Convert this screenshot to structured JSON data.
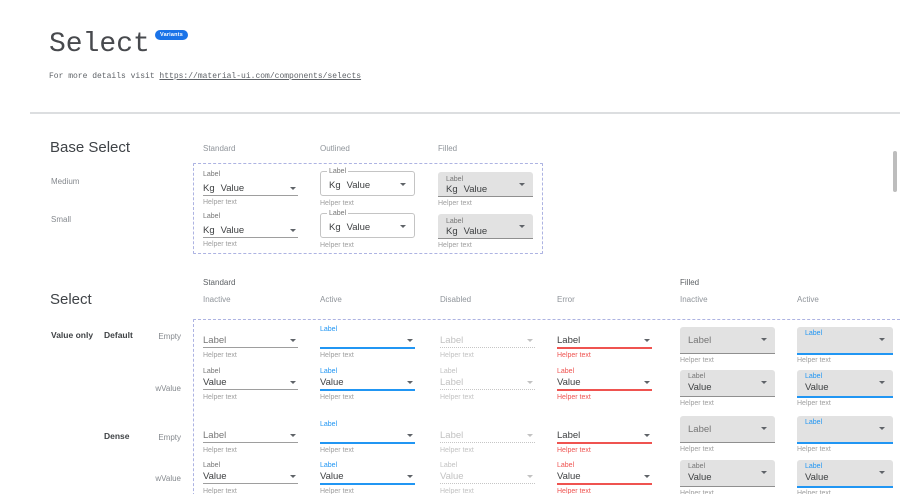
{
  "colors": {
    "accent": "#2196f3",
    "error": "#ef5350",
    "badge": "#1a73e8",
    "filled_bg": "#e2e2e2",
    "dash": "#adb3e2"
  },
  "header": {
    "title": "Select",
    "badge": "Variants",
    "intro_text": "For more details visit ",
    "intro_link": "https://material-ui.com/components/selects"
  },
  "base_select": {
    "heading": "Base Select",
    "column_headers": [
      "Standard",
      "Outlined",
      "Filled"
    ],
    "row_headers": [
      "Medium",
      "Small"
    ],
    "component": {
      "label": "Label",
      "adornment": "Kg",
      "value": "Value",
      "helper": "Helper text"
    }
  },
  "select_matrix": {
    "heading": "Select",
    "group_headers": [
      "Standard",
      "Filled"
    ],
    "state_headers": [
      "Inactive",
      "Active",
      "Disabled",
      "Error",
      "Inactive",
      "Active"
    ],
    "row_label": "Value only",
    "helper": "Helper text",
    "rows": [
      {
        "size": "Default",
        "variant": "Empty",
        "cells": [
          {
            "kind": "standard",
            "state": "inactive",
            "caption": null,
            "value": "Label",
            "tone": "placeholder"
          },
          {
            "kind": "standard",
            "state": "active",
            "caption": "Label",
            "value": null,
            "tone": "dark"
          },
          {
            "kind": "standard",
            "state": "disabled",
            "caption": null,
            "value": "Label",
            "tone": "disabled"
          },
          {
            "kind": "standard",
            "state": "error",
            "caption": null,
            "value": "Label",
            "tone": "dark"
          },
          {
            "kind": "filled",
            "state": "inactive",
            "caption": null,
            "value": "Label",
            "tone": "placeholder"
          },
          {
            "kind": "filled",
            "state": "active",
            "caption": "Label",
            "value": null,
            "tone": "dark"
          }
        ]
      },
      {
        "size": null,
        "variant": "wValue",
        "cells": [
          {
            "kind": "standard",
            "state": "inactive",
            "caption": "Label",
            "value": "Value",
            "tone": "dark"
          },
          {
            "kind": "standard",
            "state": "active",
            "caption": "Label",
            "value": "Value",
            "tone": "dark"
          },
          {
            "kind": "standard",
            "state": "disabled",
            "caption": "Label",
            "value": "Label",
            "tone": "disabled"
          },
          {
            "kind": "standard",
            "state": "error",
            "caption": "Label",
            "value": "Value",
            "tone": "dark"
          },
          {
            "kind": "filled",
            "state": "inactive",
            "caption": "Label",
            "value": "Value",
            "tone": "dark"
          },
          {
            "kind": "filled",
            "state": "active",
            "caption": "Label",
            "value": "Value",
            "tone": "dark"
          }
        ]
      },
      {
        "size": "Dense",
        "variant": "Empty",
        "cells": [
          {
            "kind": "standard",
            "state": "inactive",
            "caption": null,
            "value": "Label",
            "tone": "placeholder"
          },
          {
            "kind": "standard",
            "state": "active",
            "caption": "Label",
            "value": null,
            "tone": "dark"
          },
          {
            "kind": "standard",
            "state": "disabled",
            "caption": null,
            "value": "Label",
            "tone": "disabled"
          },
          {
            "kind": "standard",
            "state": "error",
            "caption": null,
            "value": "Label",
            "tone": "dark"
          },
          {
            "kind": "filled",
            "state": "inactive",
            "caption": null,
            "value": "Label",
            "tone": "placeholder"
          },
          {
            "kind": "filled",
            "state": "active",
            "caption": "Label",
            "value": null,
            "tone": "dark"
          }
        ]
      },
      {
        "size": null,
        "variant": "wValue",
        "cells": [
          {
            "kind": "standard",
            "state": "inactive",
            "caption": "Label",
            "value": "Value",
            "tone": "dark"
          },
          {
            "kind": "standard",
            "state": "active",
            "caption": "Label",
            "value": "Value",
            "tone": "dark"
          },
          {
            "kind": "standard",
            "state": "disabled",
            "caption": "Label",
            "value": "Value",
            "tone": "disabled"
          },
          {
            "kind": "standard",
            "state": "error",
            "caption": "Label",
            "value": "Value",
            "tone": "dark"
          },
          {
            "kind": "filled",
            "state": "inactive",
            "caption": "Label",
            "value": "Value",
            "tone": "dark"
          },
          {
            "kind": "filled",
            "state": "active",
            "caption": "Label",
            "value": "Value",
            "tone": "dark"
          }
        ]
      }
    ]
  }
}
